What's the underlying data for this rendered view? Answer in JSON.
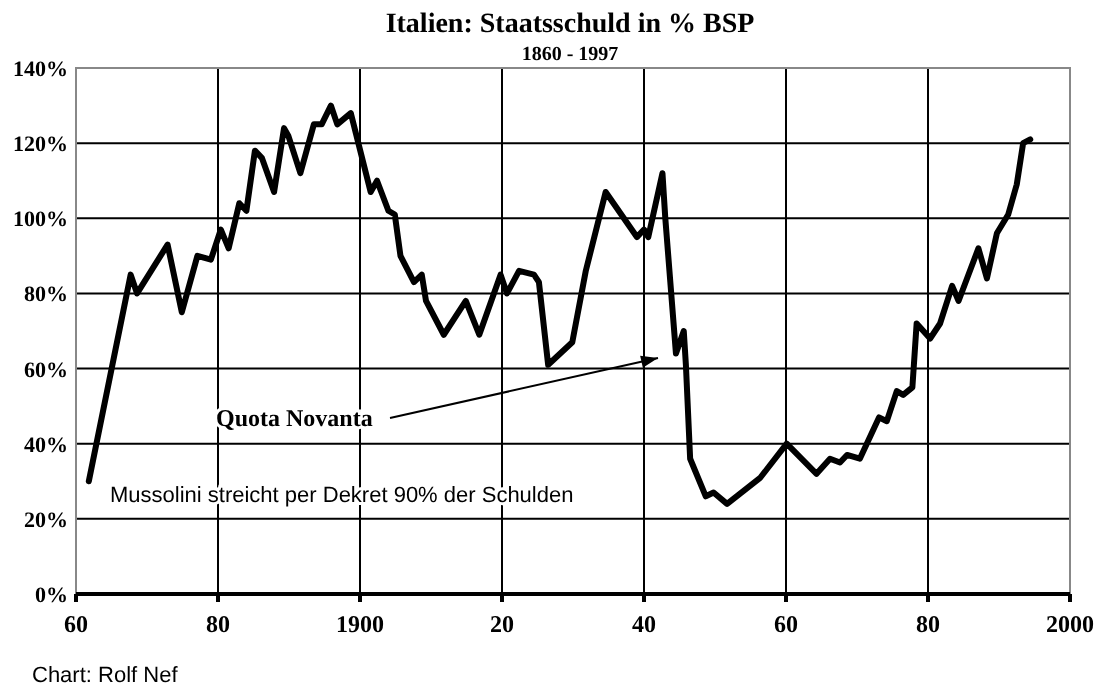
{
  "chart_data": {
    "type": "line",
    "title": "Italien: Staatsschuld in % BSP",
    "subtitle": "1860 - 1997",
    "annotations": [
      "Quota Novanta",
      "Mussolini streicht per Dekret 90% der Schulden",
      "Chart: Rolf Nef"
    ],
    "series": [
      {
        "color": "#000000",
        "x": [
          1861.8,
          1867.7,
          1868.6,
          1872.9,
          1874.9,
          1877.1,
          1879,
          1880.4,
          1881.5,
          1883,
          1884,
          1885.2,
          1886.2,
          1887.9,
          1889.3,
          1889.9,
          1891.6,
          1893.5,
          1894.6,
          1895.9,
          1896.8,
          1898.7,
          1901.5,
          1902.4,
          1904,
          1904.9,
          1905.7,
          1907.6,
          1908.7,
          1909.3,
          1911.8,
          1914.9,
          1916.8,
          1919.8,
          1920.7,
          1922.4,
          1924.5,
          1925.2,
          1926.5,
          1929.9,
          1931.8,
          1934.6,
          1939,
          1940,
          1940.6,
          1942.6,
          1943,
          1944.5,
          1945.6,
          1945.9,
          1946.5,
          1948.7,
          1949.8,
          1951.7,
          1956.4,
          1960.1,
          1964.3,
          1966.2,
          1967.6,
          1968.6,
          1970.4,
          1973.1,
          1974.2,
          1975.6,
          1976.5,
          1977.8,
          1978.4,
          1980.3,
          1981.7,
          1983.4,
          1984.3,
          1987.1,
          1988.3,
          1989.7,
          1991.3,
          1992.5,
          1993.4,
          1994.4
        ],
        "values": [
          30,
          85,
          80,
          93,
          75,
          90,
          89,
          97,
          92,
          104,
          102,
          118,
          116,
          107,
          124,
          122,
          112,
          125,
          125,
          130,
          125,
          128,
          107,
          110,
          102,
          101,
          90,
          83,
          85,
          78,
          69,
          78,
          69,
          85,
          80,
          86,
          85,
          83,
          61,
          67,
          86,
          107,
          95,
          97,
          95,
          112,
          100,
          64,
          70,
          61,
          36,
          26,
          27,
          24,
          31,
          40,
          32,
          36,
          35,
          37,
          36,
          47,
          46,
          54,
          53,
          55,
          72,
          68,
          72,
          82,
          78,
          92,
          84,
          96,
          101,
          109,
          120,
          121
        ]
      }
    ],
    "xlim": [
      1860,
      2000
    ],
    "xticks": [
      {
        "value": 1860,
        "label": "60"
      },
      {
        "value": 1880,
        "label": "80"
      },
      1900,
      {
        "value": 1920,
        "label": "20"
      },
      {
        "value": 1940,
        "label": "40"
      },
      {
        "value": 1960,
        "label": "60"
      },
      {
        "value": 1980,
        "label": "80"
      },
      2000
    ],
    "ylim": [
      0,
      140
    ],
    "yticks": [
      {
        "value": 0,
        "label": "0%"
      },
      {
        "value": 20,
        "label": "20%"
      },
      {
        "value": 40,
        "label": "40%"
      },
      {
        "value": 60,
        "label": "60%"
      },
      {
        "value": 80,
        "label": "80%"
      },
      {
        "value": 100,
        "label": "100%"
      },
      {
        "value": 120,
        "label": "120%"
      },
      {
        "value": 140,
        "label": "140%"
      }
    ],
    "grid": true,
    "marker": "none",
    "line_style": "solid"
  }
}
